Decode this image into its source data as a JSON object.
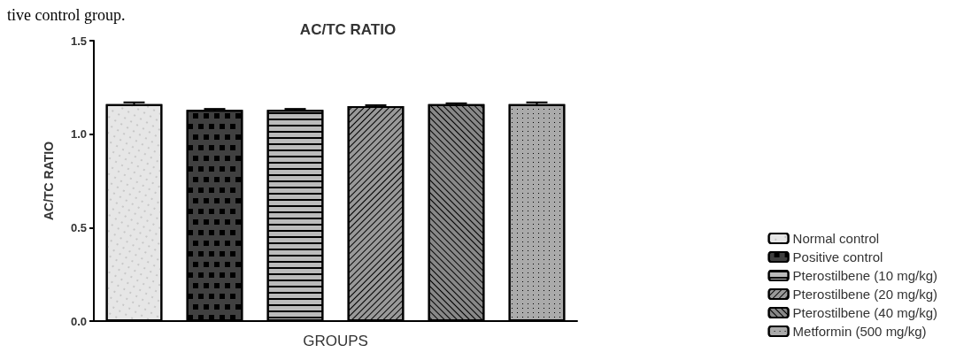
{
  "chart_data": {
    "type": "bar",
    "title": "AC/TC RATIO",
    "xlabel": "GROUPS",
    "ylabel": "AC/TC RATIO",
    "categories": [
      null,
      null,
      null,
      null,
      null,
      null
    ],
    "series": [
      {
        "name": "Normal control",
        "color": "#e6e6e6",
        "values": [
          1.16,
          null,
          null,
          null,
          null,
          null
        ],
        "errors": [
          0.01,
          null,
          null,
          null,
          null,
          null
        ]
      },
      {
        "name": "Positive control",
        "color": "#404040",
        "values": [
          null,
          1.13,
          null,
          null,
          null,
          null
        ],
        "errors": [
          null,
          0.005,
          null,
          null,
          null,
          null
        ]
      },
      {
        "name": "Pterostilbene (10 mg/kg)",
        "color": "#bbbbbb",
        "values": [
          null,
          null,
          1.13,
          null,
          null,
          null
        ],
        "errors": [
          null,
          null,
          0.005,
          null,
          null,
          null
        ]
      },
      {
        "name": "Pterostilbene (20 mg/kg)",
        "color": "#999999",
        "values": [
          null,
          null,
          null,
          1.15,
          null,
          null
        ],
        "errors": [
          null,
          null,
          null,
          0.005,
          null,
          null
        ]
      },
      {
        "name": "Pterostilbene (40 mg/kg)",
        "color": "#888888",
        "values": [
          null,
          null,
          null,
          null,
          1.16,
          null
        ],
        "errors": [
          null,
          null,
          null,
          null,
          0.005,
          null
        ]
      },
      {
        "name": "Metformin (500 mg/kg)",
        "color": "#aaaaaa",
        "values": [
          null,
          null,
          null,
          null,
          null,
          1.16
        ],
        "errors": [
          null,
          null,
          null,
          null,
          null,
          0.01
        ]
      }
    ],
    "ylim": [
      0,
      1.5
    ],
    "yticks": [
      {
        "value": 0,
        "label": "0.0"
      },
      0.5,
      {
        "value": 1,
        "label": "1.0"
      },
      1.5
    ],
    "tick_labels": "y",
    "legend": "bottom right",
    "grid": false,
    "annotations": [
      "tive control group."
    ]
  }
}
